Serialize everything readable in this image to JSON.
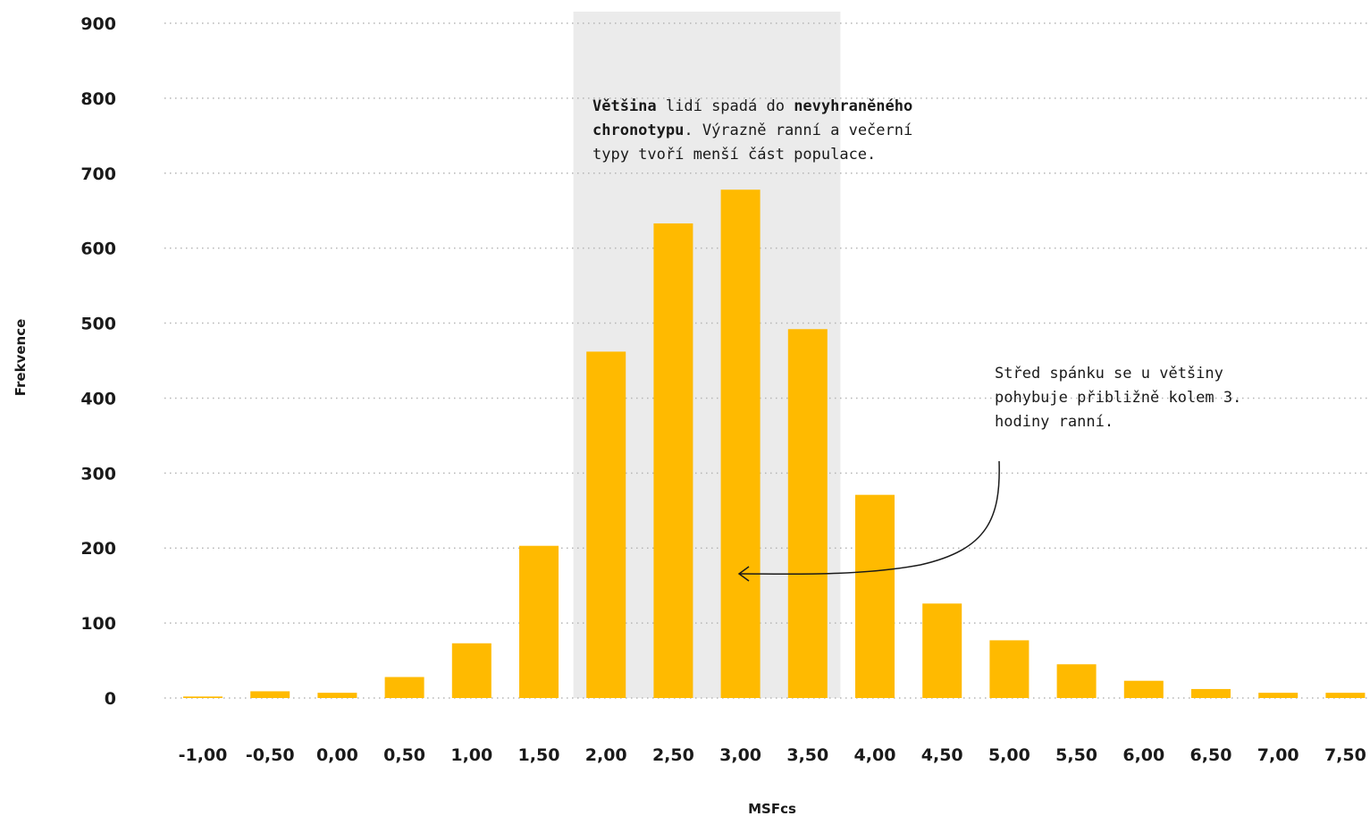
{
  "chart_data": {
    "type": "bar",
    "categories": [
      "-1,00",
      "-0,50",
      "0,00",
      "0,50",
      "1,00",
      "1,50",
      "2,00",
      "2,50",
      "3,00",
      "3,50",
      "4,00",
      "4,50",
      "5,00",
      "5,50",
      "6,00",
      "6,50",
      "7,00",
      "7,50"
    ],
    "values": [
      2,
      9,
      7,
      28,
      73,
      203,
      462,
      633,
      678,
      492,
      271,
      126,
      77,
      45,
      23,
      12,
      7,
      7
    ],
    "xlabel": "MSFcs",
    "ylabel": "Frekvence",
    "ylim": [
      0,
      900
    ],
    "yticks": [
      0,
      100,
      200,
      300,
      400,
      500,
      600,
      700,
      800,
      900
    ],
    "ytick_labels": [
      "0",
      "100",
      "200",
      "300",
      "400",
      "500",
      "600",
      "700",
      "800",
      "900"
    ],
    "grid": true,
    "highlight_range": [
      "2,00",
      "3,50"
    ],
    "bar_color": "#FFBA00",
    "highlight_color": "#EBEBEB",
    "grid_color": "#B5B5B5"
  },
  "annotations": {
    "highlight_note": {
      "b1": "Většina",
      "t1": " lidí spadá do ",
      "b2": "nevyhraněného chronotypu",
      "t2": ". Výrazně ranní a večerní typy tvoří menší část populace."
    },
    "arrow_note": "Střed spánku se u většiny pohybuje přibližně kolem 3. hodiny ranní."
  }
}
